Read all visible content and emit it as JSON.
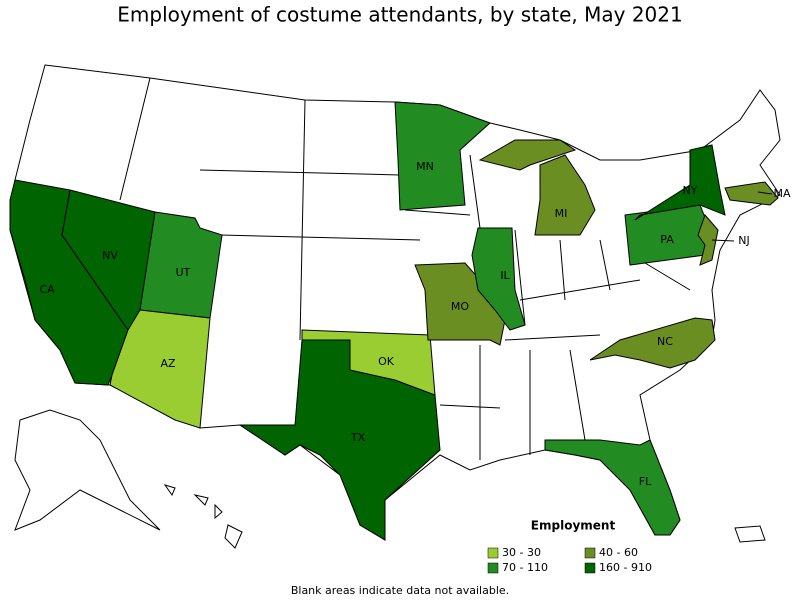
{
  "title": "Employment of costume attendants, by state, May 2021",
  "legend": {
    "title": "Employment",
    "items": [
      {
        "label": "30 - 30",
        "color": "#9acd32"
      },
      {
        "label": "40 - 60",
        "color": "#6b8e23"
      },
      {
        "label": "70 - 110",
        "color": "#228b22"
      },
      {
        "label": "160 - 910",
        "color": "#006400"
      }
    ]
  },
  "states": [
    {
      "label": "CA",
      "class": 3
    },
    {
      "label": "NV",
      "class": 3
    },
    {
      "label": "UT",
      "class": 2
    },
    {
      "label": "AZ",
      "class": 0
    },
    {
      "label": "TX",
      "class": 3
    },
    {
      "label": "OK",
      "class": 0
    },
    {
      "label": "MO",
      "class": 1
    },
    {
      "label": "IL",
      "class": 2
    },
    {
      "label": "MN",
      "class": 2
    },
    {
      "label": "MI",
      "class": 1
    },
    {
      "label": "PA",
      "class": 2
    },
    {
      "label": "NY",
      "class": 3
    },
    {
      "label": "NJ",
      "class": 1
    },
    {
      "label": "MA",
      "class": 1
    },
    {
      "label": "NC",
      "class": 1
    },
    {
      "label": "FL",
      "class": 2
    }
  ],
  "note": "Blank areas indicate data not available."
}
